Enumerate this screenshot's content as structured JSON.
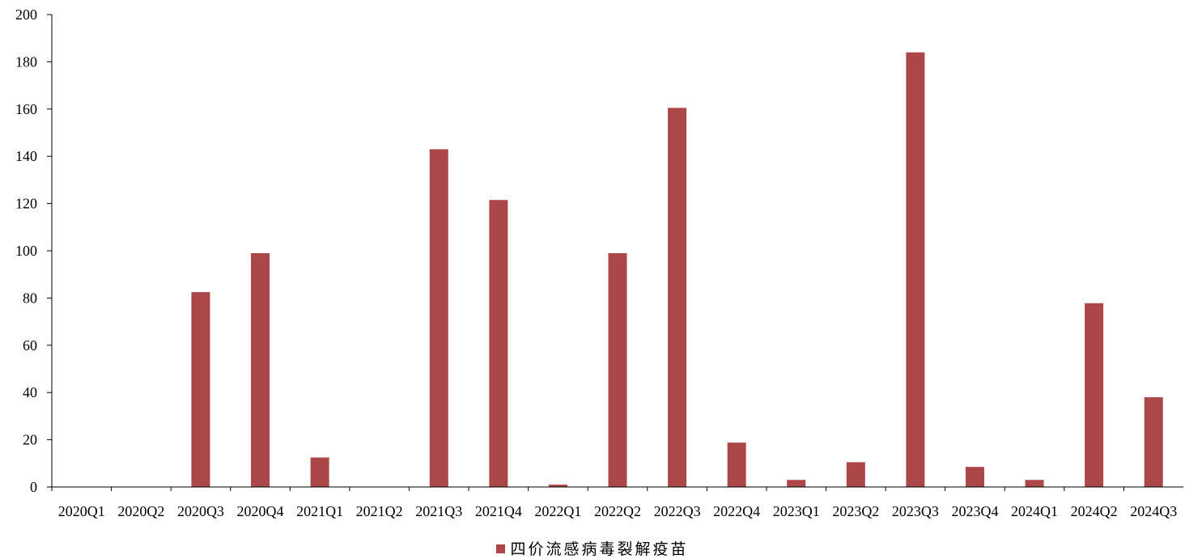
{
  "chart_data": {
    "type": "bar",
    "categories": [
      "2020Q1",
      "2020Q2",
      "2020Q3",
      "2020Q4",
      "2021Q1",
      "2021Q2",
      "2021Q3",
      "2021Q4",
      "2022Q1",
      "2022Q2",
      "2022Q3",
      "2022Q4",
      "2023Q1",
      "2023Q2",
      "2023Q3",
      "2023Q4",
      "2024Q1",
      "2024Q2",
      "2024Q3"
    ],
    "series": [
      {
        "name": "四价流感病毒裂解疫苗",
        "color": "#ab4749",
        "values": [
          0,
          0,
          82.5,
          99,
          12.5,
          0,
          143,
          121.5,
          1,
          99,
          160.5,
          18.8,
          3,
          10.5,
          184,
          8.5,
          3,
          77.8,
          38
        ]
      }
    ],
    "ylim": [
      0,
      200
    ],
    "yticks": [
      0,
      20,
      40,
      60,
      80,
      100,
      120,
      140,
      160,
      180,
      200
    ],
    "xlabel": "",
    "ylabel": "",
    "title": "",
    "grid": false,
    "legend_position": "bottom-center"
  }
}
